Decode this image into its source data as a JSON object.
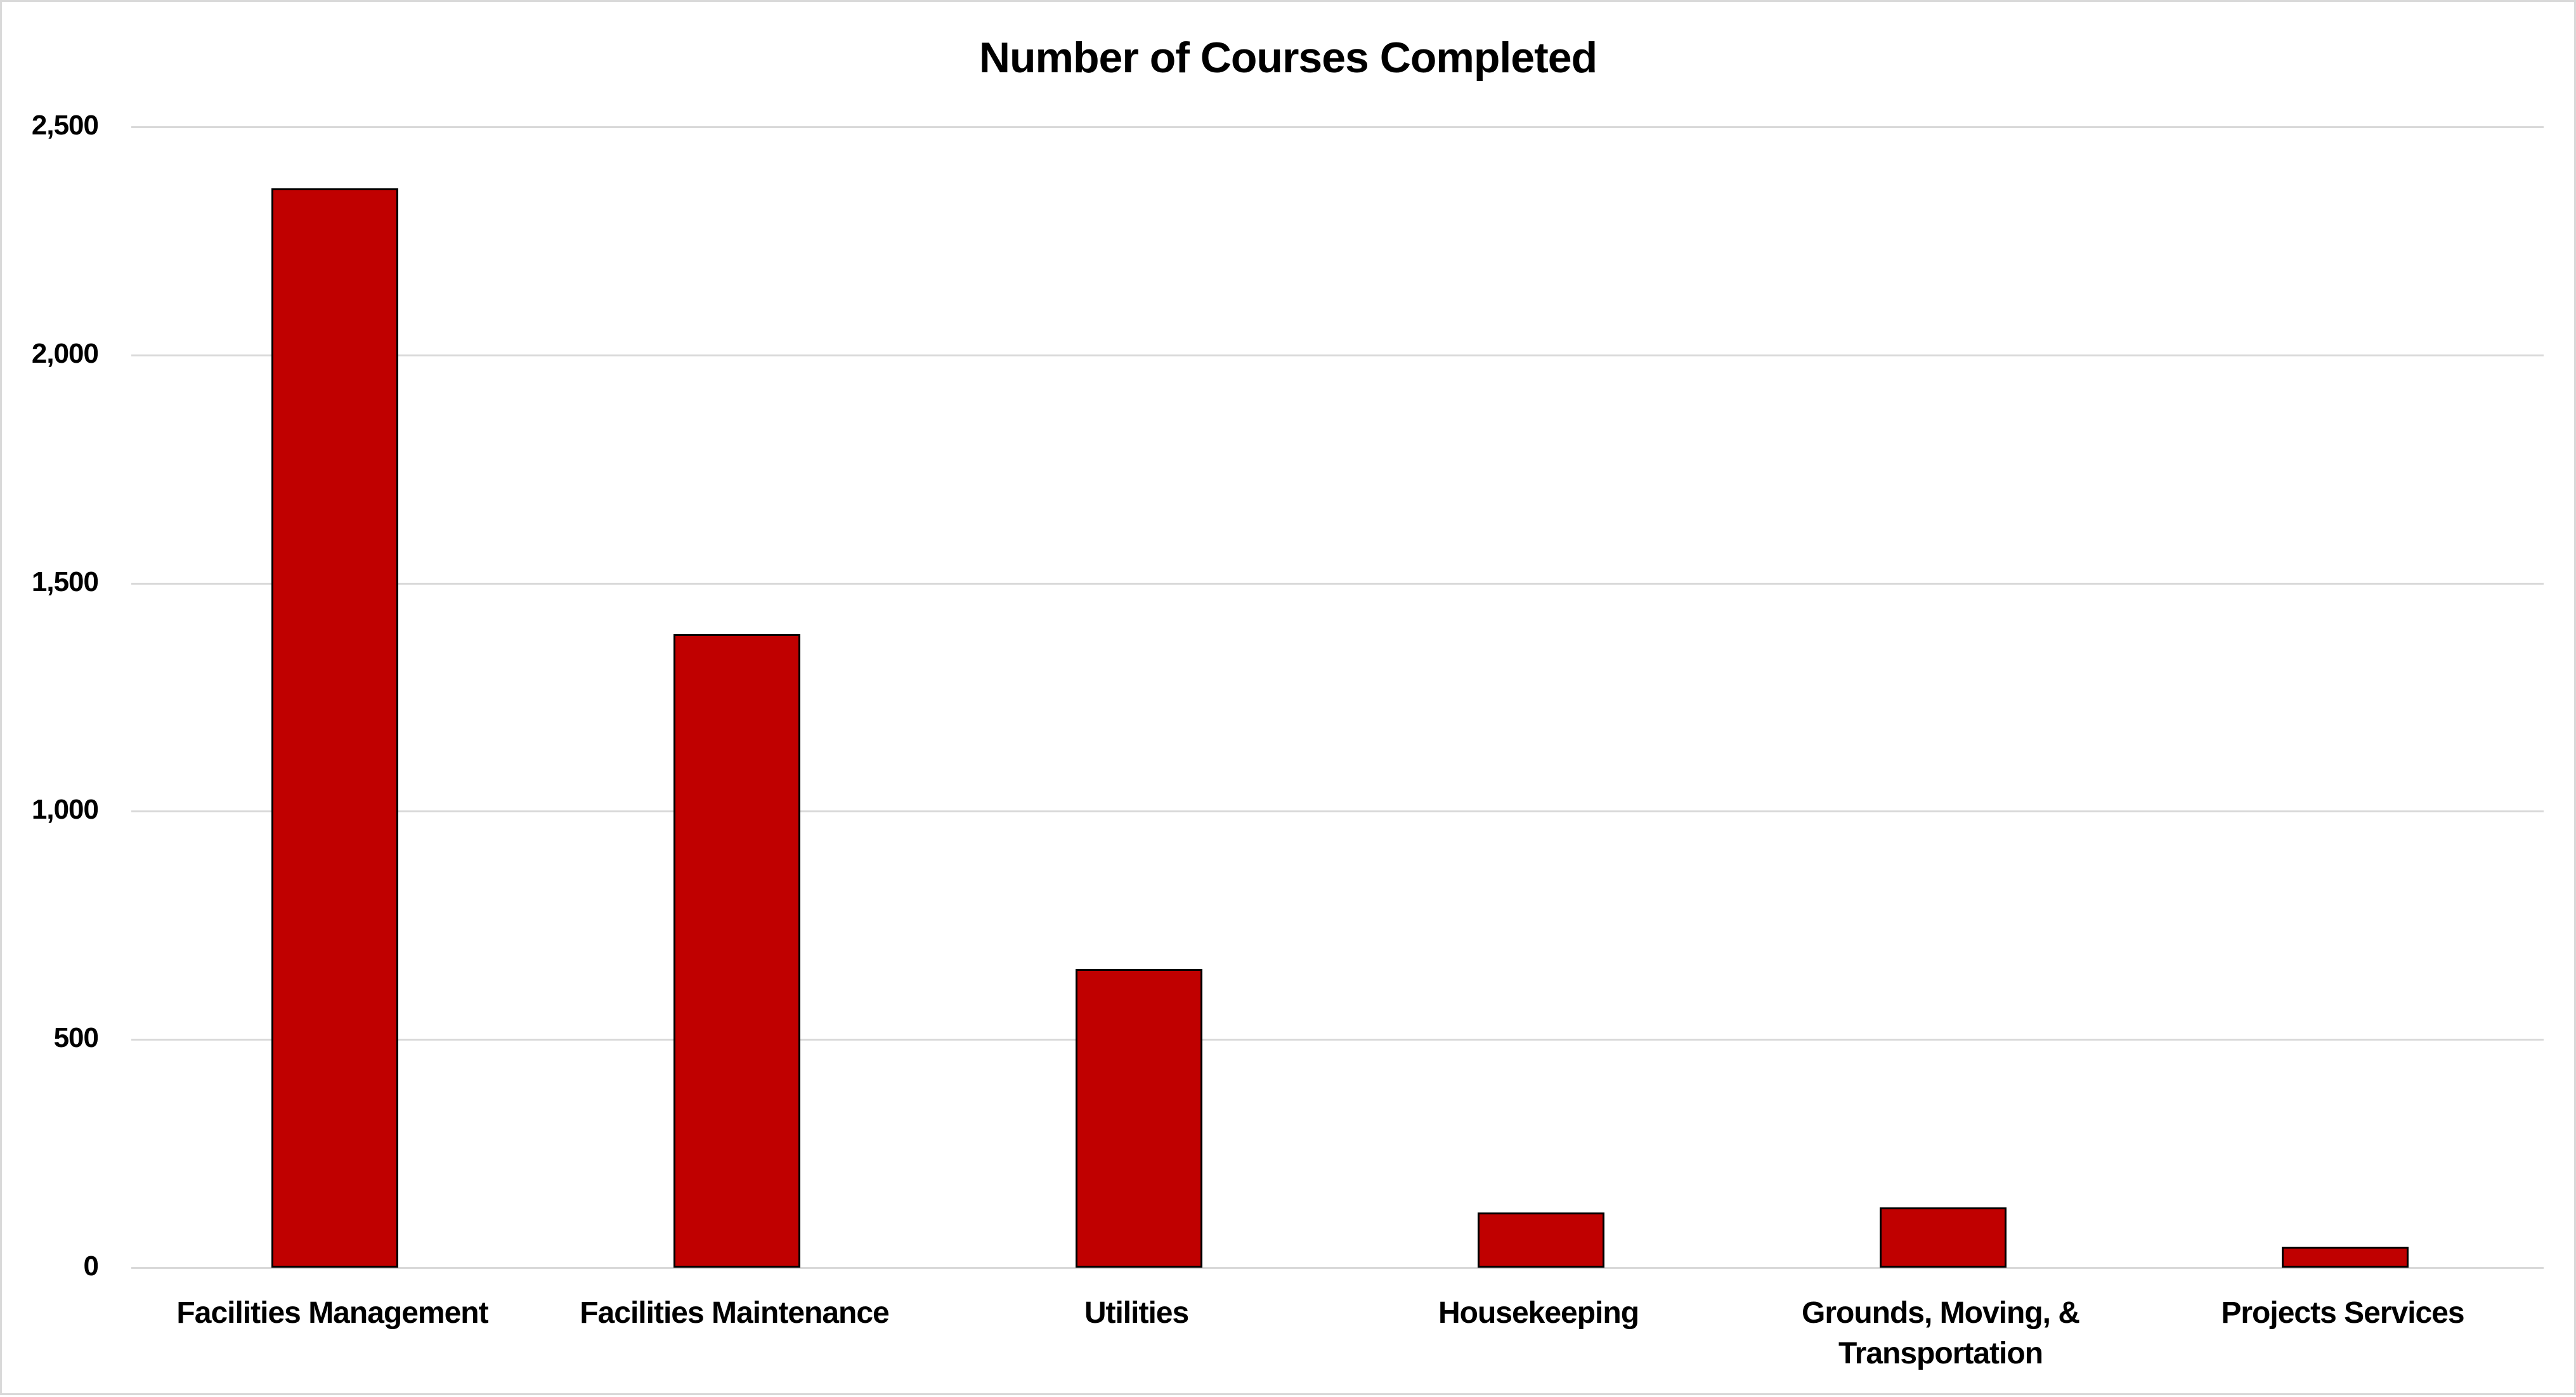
{
  "chart_data": {
    "type": "bar",
    "title": "Number of Courses Completed",
    "categories": [
      "Facilities Management",
      "Facilities Maintenance",
      "Utilities",
      "Housekeeping",
      "Grounds, Moving, & Transportation",
      "Projects Services"
    ],
    "category_label_lines": [
      [
        "Facilities Management"
      ],
      [
        "Facilities Maintenance"
      ],
      [
        "Utilities"
      ],
      [
        "Housekeeping"
      ],
      [
        "Grounds, Moving, &",
        "Transportation"
      ],
      [
        "Projects Services"
      ]
    ],
    "values": [
      2365,
      1388,
      655,
      121,
      132,
      46
    ],
    "xlabel": "",
    "ylabel": "",
    "ylim": [
      0,
      2500
    ],
    "yticks": [
      0,
      500,
      1000,
      1500,
      2000,
      2500
    ],
    "ytick_labels": [
      "0",
      "500",
      "1,000",
      "1,500",
      "2,000",
      "2,500"
    ],
    "grid": true,
    "legend": null,
    "colors": {
      "bar_fill": "#c00000",
      "bar_border": "#000000",
      "gridline": "#d9d9d9",
      "chart_border": "#d9d9d9",
      "text": "#000000"
    }
  }
}
